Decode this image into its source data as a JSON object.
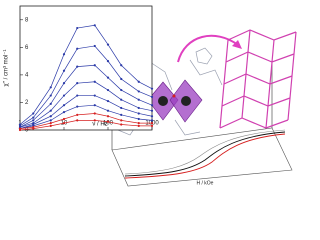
{
  "chart_data": {
    "type": "line",
    "x_scale": "log",
    "x": [
      1,
      2,
      5,
      10,
      20,
      50,
      100,
      200,
      500,
      1000
    ],
    "xlim": [
      1,
      1000
    ],
    "xticks": [
      1,
      10,
      100,
      1000
    ],
    "ylim": [
      0,
      9
    ],
    "yticks": [
      0,
      2,
      4,
      6,
      8
    ],
    "ylabel": "χ'' / cm³ mol⁻¹",
    "xlabel": "ν / Hz",
    "series": [
      {
        "color": "#2b3aa8",
        "values": [
          0.4,
          1.2,
          3.1,
          5.5,
          7.4,
          7.6,
          6.2,
          4.7,
          3.5,
          3.0
        ]
      },
      {
        "color": "#2b3aa8",
        "values": [
          0.3,
          0.9,
          2.5,
          4.3,
          5.9,
          6.1,
          5.0,
          3.7,
          2.8,
          2.4
        ]
      },
      {
        "color": "#2b3aa8",
        "values": [
          0.2,
          0.7,
          1.9,
          3.4,
          4.6,
          4.7,
          3.8,
          2.9,
          2.2,
          1.8
        ]
      },
      {
        "color": "#2b3aa8",
        "values": [
          0.2,
          0.5,
          1.4,
          2.5,
          3.4,
          3.5,
          2.9,
          2.2,
          1.6,
          1.4
        ]
      },
      {
        "color": "#2b3aa8",
        "values": [
          0.1,
          0.4,
          1.0,
          1.8,
          2.5,
          2.5,
          2.1,
          1.6,
          1.2,
          1.0
        ]
      },
      {
        "color": "#2b3aa8",
        "values": [
          0.1,
          0.3,
          0.7,
          1.3,
          1.7,
          1.8,
          1.4,
          1.1,
          0.8,
          0.7
        ]
      },
      {
        "color": "#d62020",
        "values": [
          0.1,
          0.2,
          0.5,
          0.8,
          1.1,
          1.2,
          1.0,
          0.7,
          0.5,
          0.5
        ]
      },
      {
        "color": "#d62020",
        "values": [
          0.0,
          0.1,
          0.3,
          0.5,
          0.7,
          0.7,
          0.6,
          0.4,
          0.3,
          0.3
        ]
      }
    ]
  },
  "hysteresis": {
    "xlabel": "H / kOe"
  }
}
